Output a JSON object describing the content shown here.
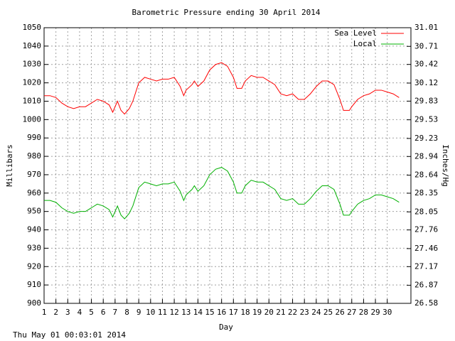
{
  "chart_data": {
    "type": "line",
    "title": "Barometric Pressure ending 30 April 2014",
    "x_label": "Day",
    "y_label": "Millibars",
    "y2_label": "Inches/Hg",
    "footer": "Thu May 01 00:03:01 2014",
    "x": [
      1,
      1.5,
      2,
      2.5,
      3,
      3.5,
      4,
      4.5,
      5,
      5.5,
      6,
      6.5,
      6.8,
      7.2,
      7.5,
      7.8,
      8.2,
      8.5,
      9,
      9.5,
      10,
      10.5,
      11,
      11.5,
      12,
      12.5,
      12.8,
      13,
      13.5,
      13.7,
      14,
      14.5,
      15,
      15.5,
      16,
      16.5,
      17,
      17.3,
      17.7,
      18,
      18.5,
      19,
      19.5,
      20,
      20.5,
      21,
      21.5,
      22,
      22.5,
      23,
      23.5,
      24,
      24.5,
      25,
      25.5,
      26,
      26.3,
      26.8,
      27,
      27.5,
      28,
      28.5,
      29,
      29.5,
      30,
      30.5,
      31
    ],
    "series": [
      {
        "name": "Sea Level",
        "color": "#ff0000",
        "values": [
          1013,
          1013,
          1012,
          1009,
          1007,
          1006,
          1007,
          1007,
          1009,
          1011,
          1010,
          1008,
          1004,
          1010,
          1005,
          1003,
          1006,
          1010,
          1020,
          1023,
          1022,
          1021,
          1022,
          1022,
          1023,
          1018,
          1013,
          1016,
          1019,
          1021,
          1018,
          1021,
          1027,
          1030,
          1031,
          1029,
          1023,
          1017,
          1017,
          1021,
          1024,
          1023,
          1023,
          1021,
          1019,
          1014,
          1013,
          1014,
          1011,
          1011,
          1014,
          1018,
          1021,
          1021,
          1019,
          1011,
          1005,
          1005,
          1007,
          1011,
          1013,
          1014,
          1016,
          1016,
          1015,
          1014,
          1012
        ]
      },
      {
        "name": "Local",
        "color": "#00b000",
        "values": [
          956,
          956,
          955,
          952,
          950,
          949,
          950,
          950,
          952,
          954,
          953,
          951,
          947,
          953,
          948,
          946,
          949,
          953,
          963,
          966,
          965,
          964,
          965,
          965,
          966,
          961,
          956,
          959,
          962,
          964,
          961,
          964,
          970,
          973,
          974,
          972,
          966,
          960,
          960,
          964,
          967,
          966,
          966,
          964,
          962,
          957,
          956,
          957,
          954,
          954,
          957,
          961,
          964,
          964,
          962,
          954,
          948,
          948,
          950,
          954,
          956,
          957,
          959,
          959,
          958,
          957,
          955
        ]
      }
    ],
    "xlim": [
      1,
      32
    ],
    "xticks": [
      1,
      2,
      3,
      4,
      5,
      6,
      7,
      8,
      9,
      10,
      11,
      12,
      13,
      14,
      15,
      16,
      17,
      18,
      19,
      20,
      21,
      22,
      23,
      24,
      25,
      26,
      27,
      28,
      29,
      30
    ],
    "ylim": [
      900,
      1050
    ],
    "yticks": [
      900,
      910,
      920,
      930,
      940,
      950,
      960,
      970,
      980,
      990,
      1000,
      1010,
      1020,
      1030,
      1040,
      1050
    ],
    "y2lim": [
      26.58,
      31.01
    ],
    "y2ticks": [
      26.58,
      26.87,
      27.17,
      27.46,
      27.76,
      28.05,
      28.35,
      28.64,
      28.94,
      29.23,
      29.53,
      29.83,
      30.12,
      30.42,
      30.71,
      31.01
    ],
    "grid": true,
    "legend": "top-right"
  }
}
